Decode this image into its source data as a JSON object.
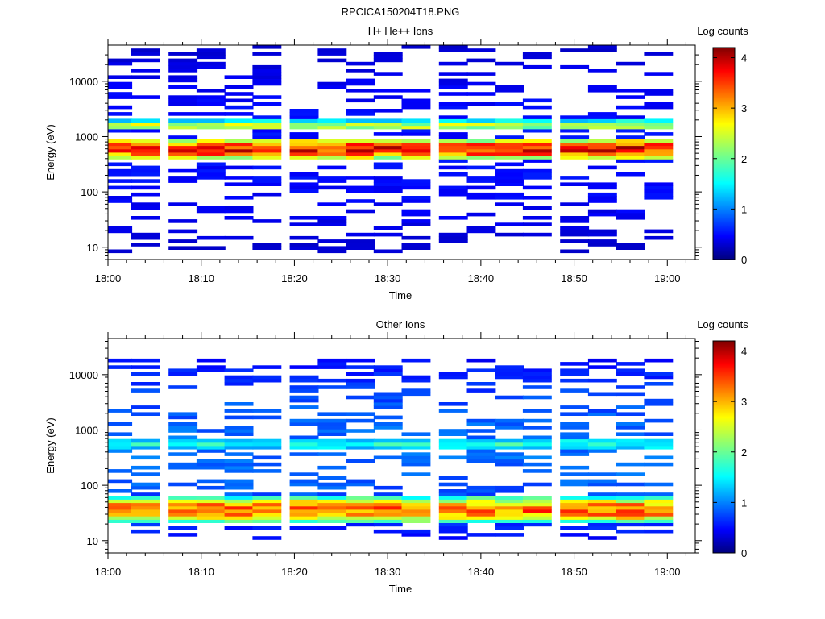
{
  "figure_title": "RPCICA150204T18.PNG",
  "chart_data": [
    {
      "type": "heatmap",
      "title": "H+ He++ Ions",
      "xlabel": "Time",
      "ylabel": "Energy (eV)",
      "x_ticks": [
        "18:00",
        "18:10",
        "18:20",
        "18:30",
        "18:40",
        "18:50",
        "19:00"
      ],
      "x_range": [
        "18:00",
        "19:03"
      ],
      "y_scale": "log",
      "y_ticks": [
        10,
        100,
        1000,
        10000
      ],
      "y_range": [
        6,
        45000
      ],
      "colorbar": {
        "label": "Log counts",
        "ticks": [
          0,
          1,
          2,
          3,
          4
        ],
        "range": [
          0,
          4.2
        ]
      },
      "time_bins": [
        "18:01",
        "18:04",
        "18:08",
        "18:11",
        "18:14",
        "18:17",
        "18:21",
        "18:24",
        "18:27",
        "18:30",
        "18:33",
        "18:37",
        "18:40",
        "18:43",
        "18:46",
        "18:50",
        "18:53",
        "18:56",
        "18:59"
      ],
      "features": [
        {
          "name": "main band",
          "energy_eV": [
            400,
            900
          ],
          "peak_log_counts": 3.8
        },
        {
          "name": "secondary band",
          "energy_eV": [
            1300,
            2000
          ],
          "peak_log_counts": 2.5
        },
        {
          "name": "scattered low counts",
          "energy_eV": [
            8,
            45000
          ],
          "peak_log_counts": 0.6
        }
      ]
    },
    {
      "type": "heatmap",
      "title": "Other Ions",
      "xlabel": "Time",
      "ylabel": "Energy (eV)",
      "x_ticks": [
        "18:00",
        "18:10",
        "18:20",
        "18:30",
        "18:40",
        "18:50",
        "19:00"
      ],
      "x_range": [
        "18:00",
        "19:03"
      ],
      "y_scale": "log",
      "y_ticks": [
        10,
        100,
        1000,
        10000
      ],
      "y_range": [
        6,
        45000
      ],
      "colorbar": {
        "label": "Log counts",
        "ticks": [
          0,
          1,
          2,
          3,
          4
        ],
        "range": [
          0,
          4.2
        ]
      },
      "time_bins": [
        "18:01",
        "18:04",
        "18:08",
        "18:11",
        "18:14",
        "18:17",
        "18:21",
        "18:24",
        "18:27",
        "18:30",
        "18:33",
        "18:37",
        "18:40",
        "18:43",
        "18:46",
        "18:50",
        "18:53",
        "18:56",
        "18:59"
      ],
      "features": [
        {
          "name": "low energy band",
          "energy_eV": [
            22,
            60
          ],
          "peak_log_counts": 3.4
        },
        {
          "name": "mid band",
          "energy_eV": [
            450,
            700
          ],
          "peak_log_counts": 1.8
        },
        {
          "name": "scattered counts",
          "energy_eV": [
            10,
            20000
          ],
          "peak_log_counts": 1.0
        }
      ]
    }
  ]
}
